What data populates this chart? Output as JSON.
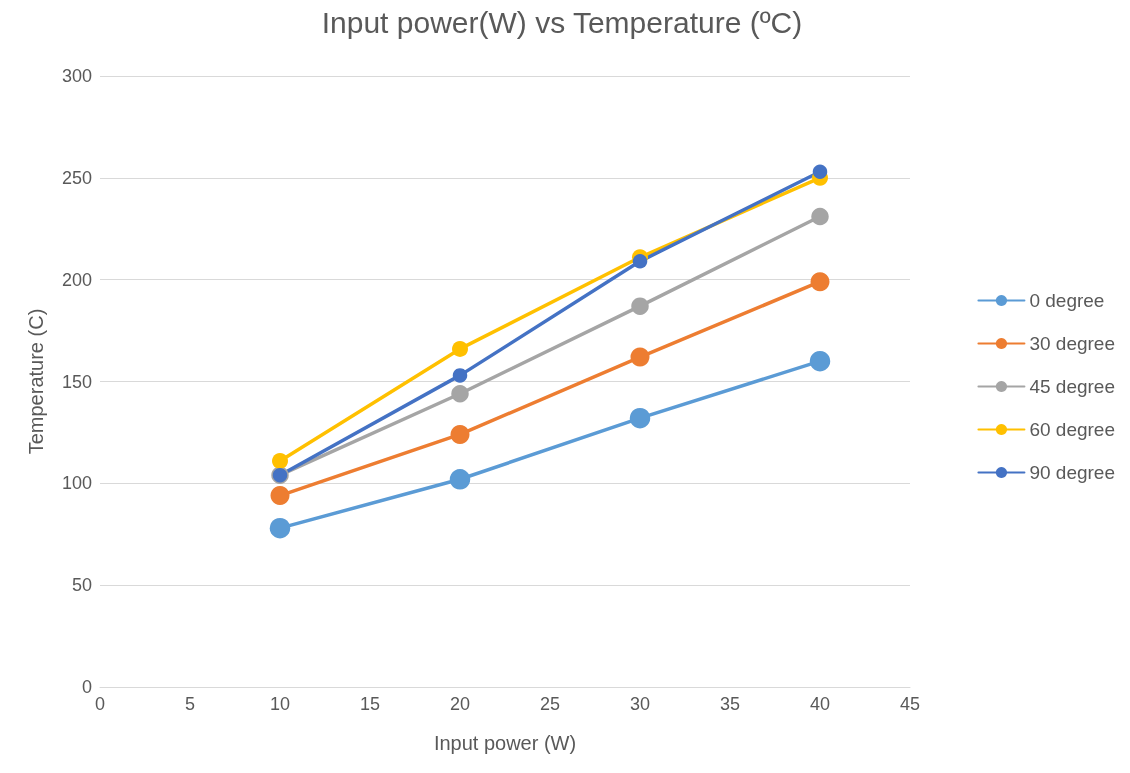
{
  "chart_data": {
    "type": "line",
    "title": "Input power(W) vs Temperature (ºC)",
    "xlabel": "Input power (W)",
    "ylabel": "Temperature (C)",
    "x": [
      10,
      20,
      30,
      40
    ],
    "series": [
      {
        "name": "0 degree",
        "color": "#5b9bd5",
        "values": [
          78,
          102,
          132,
          160
        ]
      },
      {
        "name": "30 degree",
        "color": "#ed7d31",
        "values": [
          94,
          124,
          162,
          199
        ]
      },
      {
        "name": "45 degree",
        "color": "#a5a5a5",
        "values": [
          104,
          144,
          187,
          231
        ]
      },
      {
        "name": "60 degree",
        "color": "#ffc000",
        "values": [
          111,
          166,
          211,
          250
        ]
      },
      {
        "name": "90 degree",
        "color": "#4472c4",
        "values": [
          104,
          153,
          209,
          253
        ]
      }
    ],
    "xlim": [
      0,
      45
    ],
    "xticks": [
      0,
      5,
      10,
      15,
      20,
      25,
      30,
      35,
      40,
      45
    ],
    "ylim": [
      0,
      300
    ],
    "yticks": [
      0,
      50,
      100,
      150,
      200,
      250,
      300
    ],
    "grid": "y",
    "legend": "right",
    "marker": "circle",
    "line_style": "solid"
  }
}
